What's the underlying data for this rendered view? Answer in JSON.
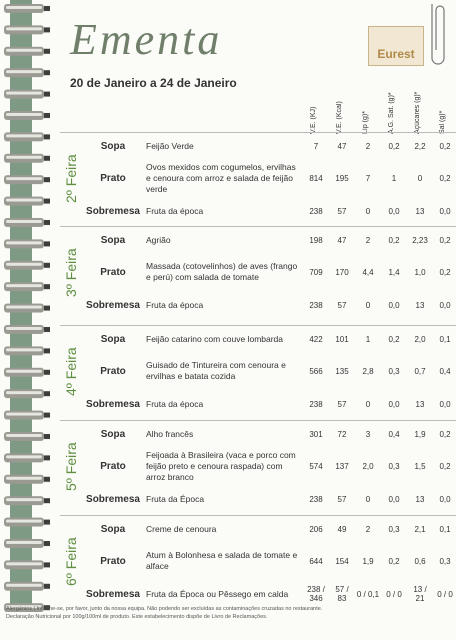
{
  "header": {
    "title": "Ementa",
    "logo": "Eurest",
    "period": "20 de Janeiro a 24 de Janeiro"
  },
  "table": {
    "columns": [
      "V.E. (KJ)",
      "V.E. (Kcal)",
      "Líp (g)*",
      "A.G. Sat. (g)*",
      "Açúcares (g)*",
      "Sal (g)*"
    ],
    "days": [
      {
        "label": "2º Feira",
        "rows": [
          {
            "course": "Sopa",
            "dish": "Feijão Verde",
            "values": [
              "7",
              "47",
              "2",
              "0,2",
              "2,2",
              "0,2"
            ]
          },
          {
            "course": "Prato",
            "dish": "Ovos mexidos com cogumelos, ervilhas e cenoura com arroz e salada de feijão verde",
            "values": [
              "814",
              "195",
              "7",
              "1",
              "0",
              "0,2"
            ]
          },
          {
            "course": "Sobremesa",
            "dish": "Fruta da época",
            "values": [
              "238",
              "57",
              "0",
              "0,0",
              "13",
              "0,0"
            ]
          }
        ]
      },
      {
        "label": "3º Feira",
        "rows": [
          {
            "course": "Sopa",
            "dish": "Agrião",
            "values": [
              "198",
              "47",
              "2",
              "0,2",
              "2,23",
              "0,2"
            ]
          },
          {
            "course": "Prato",
            "dish": "Massada (cotovelinhos) de aves (frango e perú) com salada de tomate",
            "values": [
              "709",
              "170",
              "4,4",
              "1,4",
              "1,0",
              "0,2"
            ]
          },
          {
            "course": "Sobremesa",
            "dish": "Fruta da época",
            "values": [
              "238",
              "57",
              "0",
              "0,0",
              "13",
              "0,0"
            ]
          }
        ]
      },
      {
        "label": "4º Feira",
        "rows": [
          {
            "course": "Sopa",
            "dish": "Feijão catarino com couve lombarda",
            "values": [
              "422",
              "101",
              "1",
              "0,2",
              "2,0",
              "0,1"
            ]
          },
          {
            "course": "Prato",
            "dish": "Guisado de Tintureira com cenoura e ervilhas e batata cozida",
            "values": [
              "566",
              "135",
              "2,8",
              "0,3",
              "0,7",
              "0,4"
            ]
          },
          {
            "course": "Sobremesa",
            "dish": "Fruta da época",
            "values": [
              "238",
              "57",
              "0",
              "0,0",
              "13",
              "0,0"
            ]
          }
        ]
      },
      {
        "label": "5º Feira",
        "rows": [
          {
            "course": "Sopa",
            "dish": "Alho francês",
            "values": [
              "301",
              "72",
              "3",
              "0,4",
              "1,9",
              "0,2"
            ]
          },
          {
            "course": "Prato",
            "dish": "Feijoada à Brasileira (vaca e porco com feijão preto e cenoura raspada) com arroz branco",
            "values": [
              "574",
              "137",
              "2,0",
              "0,3",
              "1,5",
              "0,2"
            ]
          },
          {
            "course": "Sobremesa",
            "dish": "Fruta da Época",
            "values": [
              "238",
              "57",
              "0",
              "0,0",
              "13",
              "0,0"
            ]
          }
        ]
      },
      {
        "label": "6º Feira",
        "rows": [
          {
            "course": "Sopa",
            "dish": "Creme de cenoura",
            "values": [
              "206",
              "49",
              "2",
              "0,3",
              "2,1",
              "0,1"
            ]
          },
          {
            "course": "Prato",
            "dish": "Atum à Bolonhesa e salada de tomate e alface",
            "values": [
              "644",
              "154",
              "1,9",
              "0,2",
              "0,6",
              "0,3"
            ]
          },
          {
            "course": "Sobremesa",
            "dish": "Fruta da Época ou Pêssego em calda",
            "values": [
              "238 / 346",
              "57 / 83",
              "0 / 0,1",
              "0 / 0",
              "13 / 21",
              "0 / 0"
            ]
          }
        ]
      }
    ]
  },
  "footer": {
    "notes": [
      "Alergénios | Informe-se, por favor, junto da nossa equipa. Não podendo ser excluídas as contaminações cruzadas no restaurante.",
      "Declaração Nutricional por 100g/100ml de produto. Este estabelecimento dispõe de Livro de Reclamações."
    ]
  }
}
